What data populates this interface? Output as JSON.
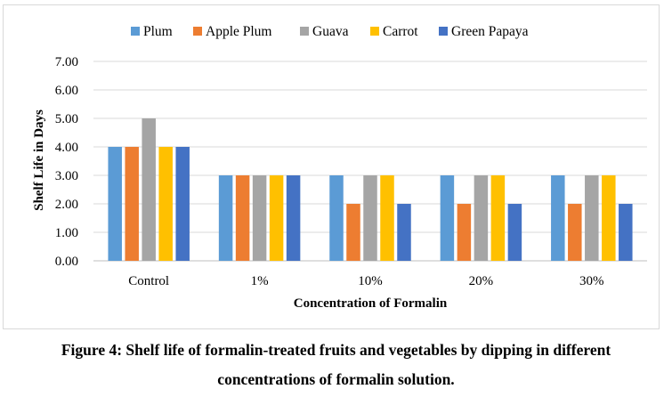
{
  "chart_data": {
    "type": "bar",
    "categories": [
      "Control",
      "1%",
      "10%",
      "20%",
      "30%"
    ],
    "series": [
      {
        "name": "Plum",
        "color": "#5B9BD5",
        "values": [
          4,
          3,
          3,
          3,
          3
        ]
      },
      {
        "name": "Apple Plum",
        "color": "#ED7D31",
        "values": [
          4,
          3,
          2,
          2,
          2
        ]
      },
      {
        "name": "Guava",
        "color": "#A5A5A5",
        "values": [
          5,
          3,
          3,
          3,
          3
        ]
      },
      {
        "name": "Carrot",
        "color": "#FFC000",
        "values": [
          4,
          3,
          3,
          3,
          3
        ]
      },
      {
        "name": "Green Papaya",
        "color": "#4472C4",
        "values": [
          4,
          3,
          2,
          2,
          2
        ]
      }
    ],
    "xlabel": "Concentration of Formalin",
    "ylabel": "Shelf Life in Days",
    "ylim": [
      0,
      7
    ],
    "yticks": [
      "0.00",
      "1.00",
      "2.00",
      "3.00",
      "4.00",
      "5.00",
      "6.00",
      "7.00"
    ],
    "grid": true,
    "legend": "top"
  },
  "caption": {
    "line1": "Figure 4: Shelf life of formalin-treated fruits and vegetables by dipping in different",
    "line2": "concentrations of formalin solution."
  }
}
